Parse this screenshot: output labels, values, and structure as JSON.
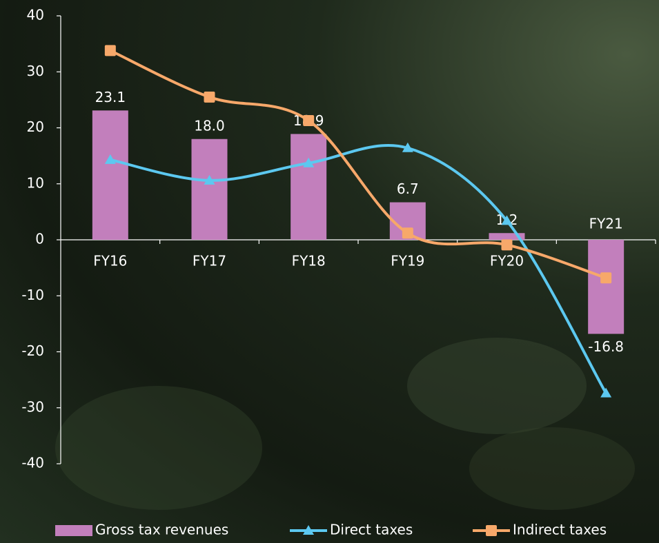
{
  "chart_data": {
    "type": "bar-line",
    "categories": [
      "FY16",
      "FY17",
      "FY18",
      "FY19",
      "FY20",
      "FY21"
    ],
    "series": [
      {
        "name": "Gross tax revenues",
        "type": "bar",
        "color": "#c27fbc",
        "values": [
          23.1,
          18.0,
          18.9,
          6.7,
          1.2,
          -16.8
        ],
        "value_labels": [
          "23.1",
          "18.0",
          "18.9",
          "6.7",
          "1.2",
          "-16.8"
        ]
      },
      {
        "name": "Direct taxes",
        "type": "line",
        "marker": "triangle",
        "color": "#5cc8f0",
        "values": [
          14.3,
          10.6,
          13.7,
          16.4,
          3.4,
          -27.4
        ]
      },
      {
        "name": "Indirect taxes",
        "type": "line",
        "marker": "square",
        "color": "#f7a86a",
        "values": [
          33.8,
          25.5,
          21.3,
          1.2,
          -0.9,
          -6.8
        ]
      }
    ],
    "ylim": [
      -40,
      40
    ],
    "yticks": [
      -40,
      -30,
      -20,
      -10,
      0,
      10,
      20,
      30,
      40
    ],
    "legend": "bottom"
  }
}
